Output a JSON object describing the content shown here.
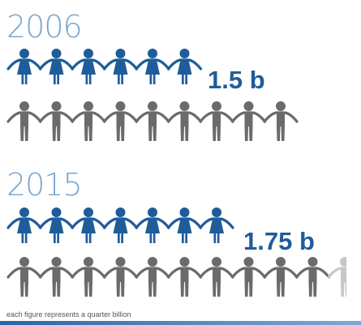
{
  "chart_data": {
    "type": "pictograph",
    "unit_note": "each figure represents a quarter billion",
    "unit_value_billion": 0.25,
    "colors": {
      "highlight": "#1f5c9a",
      "rest": "#6b6b6b",
      "partial": "#c7c7c7"
    },
    "rows": [
      {
        "year": "2006",
        "value": 1.5,
        "label": "1.5 b",
        "highlighted": 6,
        "rest": 9,
        "partial": 0
      },
      {
        "year": "2015",
        "value": 1.75,
        "label": "1.75 b",
        "highlighted": 7,
        "rest": 10,
        "partial": 1
      }
    ]
  }
}
